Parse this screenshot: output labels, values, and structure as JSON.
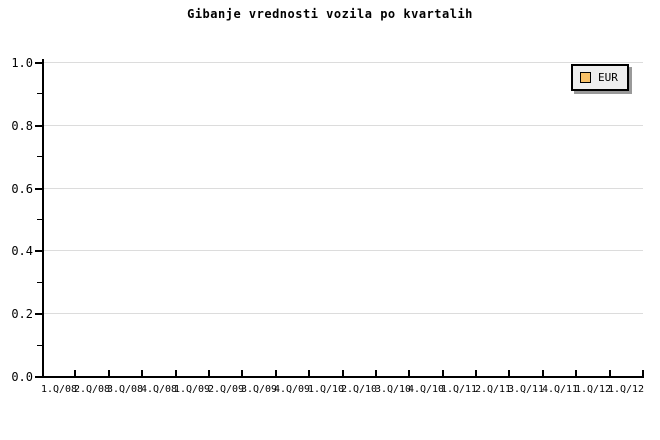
{
  "title": "Gibanje vrednosti vozila po kvartalih",
  "legend": {
    "label": "EUR",
    "swatch_color": "#f8c168",
    "background": "#efefef",
    "border_color": "#000000",
    "shadow_color": "#999999"
  },
  "chart_data": {
    "type": "bar",
    "title": "Gibanje vrednosti vozila po kvartalih",
    "categories": [
      "1.Q/08",
      "2.Q/08",
      "3.Q/08",
      "4.Q/08",
      "1.Q/09",
      "2.Q/09",
      "3.Q/09",
      "4.Q/09",
      "1.Q/10",
      "2.Q/10",
      "3.Q/10",
      "4.Q/10",
      "1.Q/11",
      "2.Q/11",
      "3.Q/11",
      "4.Q/11",
      "1.Q/12",
      "1.Q/12"
    ],
    "series": [
      {
        "name": "EUR",
        "color": "#f8c168",
        "values": []
      }
    ],
    "xlabel": "",
    "ylabel": "",
    "ylim": [
      0.0,
      1.0
    ],
    "y_major_ticks": [
      0.0,
      0.2,
      0.4,
      0.6,
      0.8,
      1.0
    ],
    "y_tick_labels": [
      "0.0",
      "0.2",
      "0.4",
      "0.6",
      "0.8",
      "1.0"
    ],
    "y_minor_step": 0.1,
    "grid": "horizontal-major-only",
    "gridline_color": "#dcdcdc",
    "axis_color": "#000000",
    "legend_position": "top-right"
  }
}
